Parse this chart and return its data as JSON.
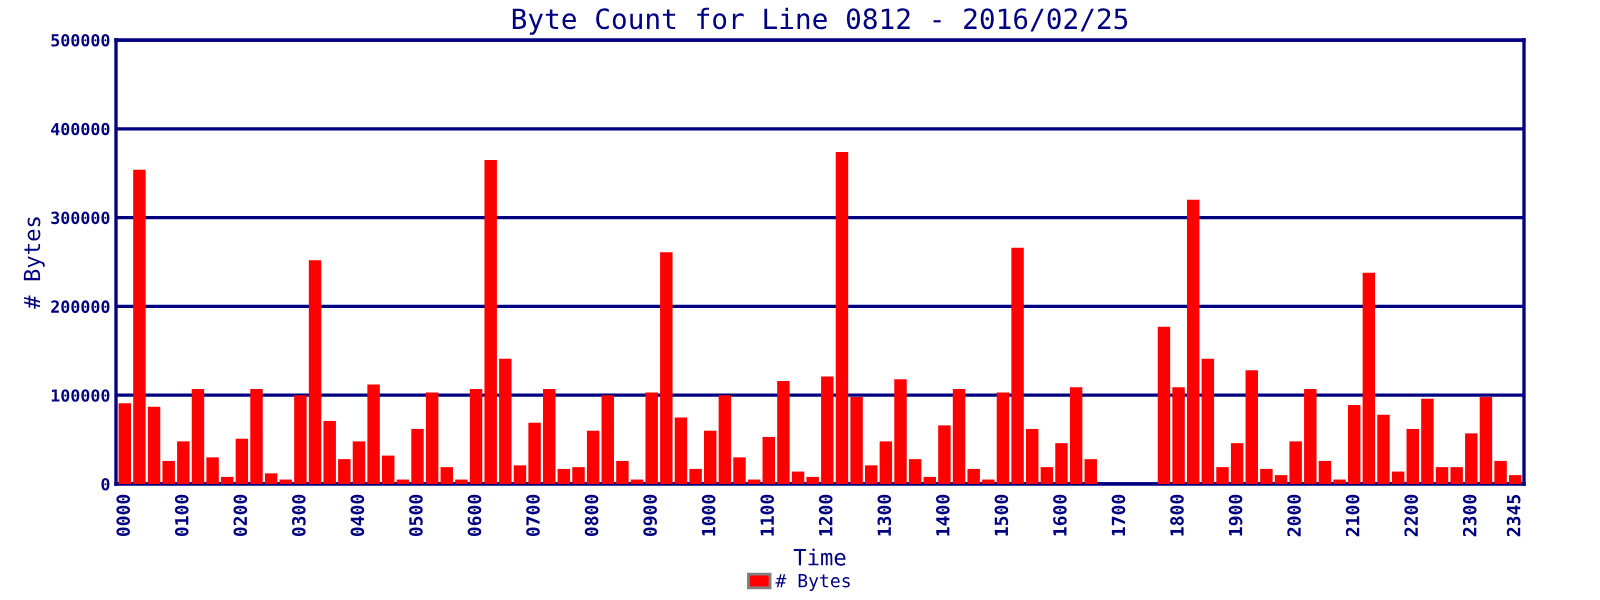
{
  "chart_data": {
    "type": "bar",
    "title": "Byte Count for Line 0812 - 2016/02/25",
    "xlabel": "Time",
    "ylabel": "# Bytes",
    "categories": [
      "0000",
      null,
      null,
      null,
      "0100",
      null,
      null,
      null,
      "0200",
      null,
      null,
      null,
      "0300",
      null,
      null,
      null,
      "0400",
      null,
      null,
      null,
      "0500",
      null,
      null,
      null,
      "0600",
      null,
      null,
      null,
      "0700",
      null,
      null,
      null,
      "0800",
      null,
      null,
      null,
      "0900",
      null,
      null,
      null,
      "1000",
      null,
      null,
      null,
      "1100",
      null,
      null,
      null,
      "1200",
      null,
      null,
      null,
      "1300",
      null,
      null,
      null,
      "1400",
      null,
      null,
      null,
      "1500",
      null,
      null,
      null,
      "1600",
      null,
      null,
      null,
      "1700",
      null,
      null,
      null,
      "1800",
      null,
      null,
      null,
      "1900",
      null,
      null,
      null,
      "2000",
      null,
      null,
      null,
      "2100",
      null,
      null,
      null,
      "2200",
      null,
      null,
      null,
      "2300",
      null,
      null,
      "2345"
    ],
    "series": [
      {
        "name": "# Bytes",
        "color": "#ff0000",
        "values": [
          91000,
          354000,
          87000,
          26000,
          48000,
          107000,
          30000,
          8000,
          51000,
          107000,
          12000,
          5000,
          100000,
          252000,
          71000,
          28000,
          48000,
          112000,
          32000,
          5000,
          62000,
          103000,
          19000,
          5000,
          107000,
          365000,
          141000,
          21000,
          69000,
          107000,
          17000,
          19000,
          60000,
          100000,
          26000,
          5000,
          103000,
          261000,
          75000,
          17000,
          60000,
          100000,
          30000,
          5000,
          53000,
          116000,
          14000,
          8000,
          121000,
          374000,
          98000,
          21000,
          48000,
          118000,
          28000,
          8000,
          66000,
          107000,
          17000,
          5000,
          103000,
          266000,
          62000,
          19000,
          46000,
          109000,
          28000,
          0,
          0,
          0,
          0,
          177000,
          109000,
          320000,
          141000,
          19000,
          46000,
          128000,
          17000,
          10000,
          48000,
          107000,
          26000,
          5000,
          89000,
          238000,
          78000,
          14000,
          62000,
          96000,
          19000,
          19000,
          57000,
          98000,
          26000,
          10000
        ]
      }
    ],
    "ylim": [
      0,
      500000
    ],
    "yticks": [
      0,
      100000,
      200000,
      300000,
      400000,
      500000
    ],
    "grid": "y",
    "legend": "bottom"
  }
}
